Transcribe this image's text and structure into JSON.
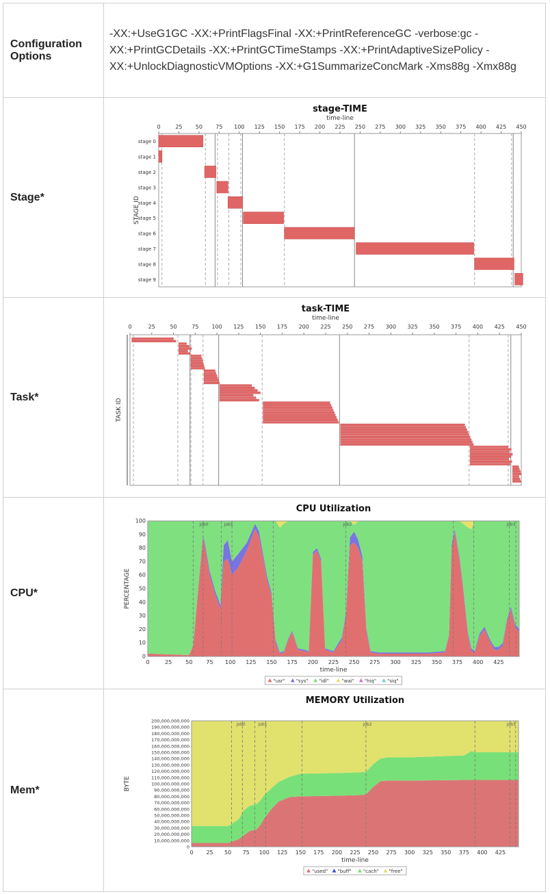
{
  "config": {
    "label": "Configuration Options",
    "label_line1": "Configuration",
    "label_line2": "Options",
    "text": "-XX:+UseG1GC -XX:+PrintFlagsFinal -XX:+PrintReferenceGC -verbose:gc -XX:+PrintGCDetails -XX:+PrintGCTimeStamps -XX:+PrintAdaptiveSizePolicy -XX:+UnlockDiagnosticVMOptions -XX:+G1SummarizeConcMark -Xms88g -Xmx88g"
  },
  "rows": {
    "stage": "Stage*",
    "task": "Task*",
    "cpu": "CPU*",
    "mem": "Mem*"
  },
  "colors": {
    "bar_red": "#e06666",
    "bar_red_dark": "#c84c4c",
    "used": "#db7575",
    "cache": "#78e078",
    "free": "#e1e16e",
    "idle": "#7fe07f",
    "sys": "#7a74e0",
    "wait": "#e8e06a",
    "usr": "#e07070",
    "hiq": "#d070d0",
    "siq": "#70d0d0",
    "buff": "#3c4cd8"
  },
  "chart_data": [
    {
      "type": "gantt",
      "title": "stage-TIME",
      "xlabel": "time-line",
      "ylabel": "STAGE ID",
      "xlim": [
        0,
        450
      ],
      "xticks": [
        0,
        25,
        50,
        75,
        100,
        125,
        150,
        175,
        200,
        225,
        250,
        275,
        300,
        325,
        350,
        375,
        400,
        425,
        450
      ],
      "dashed_lines": [
        4,
        58,
        73,
        87,
        102,
        156,
        392,
        438
      ],
      "solid_lines": [
        70,
        104,
        243,
        440
      ],
      "categories": [
        "stage 0",
        "stage 1",
        "stage 2",
        "stage 3",
        "stage 4",
        "stage 5",
        "stage 6",
        "stage 7",
        "stage 8",
        "stage 9"
      ],
      "intervals": [
        [
          0,
          55
        ],
        [
          0,
          4
        ],
        [
          57,
          71
        ],
        [
          72,
          86
        ],
        [
          86,
          104
        ],
        [
          105,
          155
        ],
        [
          156,
          243
        ],
        [
          245,
          391
        ],
        [
          392,
          441
        ],
        [
          442,
          452
        ]
      ]
    },
    {
      "type": "gantt",
      "title": "task-TIME",
      "xlabel": "time-line",
      "ylabel": "TASK ID",
      "xlim": [
        0,
        450
      ],
      "xticks": [
        0,
        25,
        50,
        75,
        100,
        125,
        150,
        175,
        200,
        225,
        250,
        275,
        300,
        325,
        350,
        375,
        400,
        425,
        450
      ],
      "dashed_lines": [
        4,
        55,
        70,
        84,
        152,
        390,
        435
      ],
      "solid_lines": [
        69,
        102,
        241,
        438
      ],
      "task_groups": [
        {
          "start": 2,
          "end_min": 50,
          "end_max": 53,
          "count": 2
        },
        {
          "start": 56,
          "end_min": 65,
          "end_max": 71,
          "count": 5
        },
        {
          "start": 70,
          "end_min": 82,
          "end_max": 86,
          "count": 6
        },
        {
          "start": 85,
          "end_min": 98,
          "end_max": 103,
          "count": 6
        },
        {
          "start": 103,
          "end_min": 140,
          "end_max": 150,
          "count": 7
        },
        {
          "start": 153,
          "end_min": 230,
          "end_max": 240,
          "count": 9
        },
        {
          "start": 242,
          "end_min": 385,
          "end_max": 395,
          "count": 9
        },
        {
          "start": 391,
          "end_min": 435,
          "end_max": 440,
          "count": 8
        },
        {
          "start": 440,
          "end_min": 447,
          "end_max": 450,
          "count": 7
        }
      ]
    },
    {
      "type": "area",
      "title": "CPU Utilization",
      "xlabel": "time-line",
      "ylabel": "PERCENTAGE",
      "xlim": [
        0,
        450
      ],
      "ylim": [
        0,
        100
      ],
      "xticks": [
        0,
        25,
        50,
        75,
        100,
        125,
        150,
        175,
        200,
        225,
        250,
        275,
        300,
        325,
        350,
        375,
        400,
        425
      ],
      "yticks": [
        0,
        10,
        20,
        30,
        40,
        50,
        60,
        70,
        80,
        90,
        100
      ],
      "job_lines": [
        55,
        67,
        89,
        102,
        152,
        240,
        370,
        395,
        438,
        446
      ],
      "job_labels": [
        {
          "x": 68,
          "text": "job0"
        },
        {
          "x": 98,
          "text": "job1"
        },
        {
          "x": 242,
          "text": "job2"
        },
        {
          "x": 440,
          "text": "job3"
        }
      ],
      "x": [
        0,
        5,
        50,
        55,
        62,
        67,
        70,
        75,
        82,
        88,
        92,
        97,
        102,
        110,
        120,
        130,
        135,
        140,
        145,
        150,
        155,
        160,
        165,
        170,
        175,
        182,
        190,
        195,
        200,
        205,
        210,
        215,
        225,
        235,
        240,
        245,
        250,
        255,
        260,
        265,
        270,
        280,
        300,
        320,
        340,
        360,
        365,
        368,
        372,
        378,
        382,
        388,
        392,
        396,
        402,
        408,
        415,
        420,
        425,
        430,
        435,
        440,
        445,
        450
      ],
      "series": [
        {
          "name": "\"usr\"",
          "values": [
            2,
            2,
            1,
            8,
            55,
            88,
            78,
            60,
            45,
            35,
            70,
            72,
            60,
            66,
            78,
            94,
            88,
            72,
            55,
            45,
            10,
            2,
            3,
            12,
            18,
            5,
            4,
            3,
            75,
            78,
            70,
            5,
            3,
            12,
            30,
            82,
            84,
            80,
            70,
            18,
            3,
            2,
            2,
            2,
            2,
            3,
            15,
            80,
            92,
            70,
            50,
            15,
            4,
            3,
            15,
            20,
            10,
            5,
            5,
            8,
            25,
            35,
            22,
            18
          ]
        },
        {
          "name": "\"sys\"",
          "values": [
            0,
            0,
            0,
            0,
            2,
            2,
            3,
            3,
            3,
            3,
            12,
            14,
            10,
            10,
            6,
            4,
            4,
            3,
            3,
            2,
            2,
            1,
            1,
            1,
            1,
            1,
            1,
            1,
            2,
            2,
            2,
            1,
            1,
            2,
            2,
            6,
            8,
            6,
            4,
            2,
            1,
            1,
            1,
            1,
            1,
            1,
            1,
            3,
            2,
            2,
            2,
            2,
            2,
            1,
            2,
            2,
            2,
            2,
            2,
            2,
            2,
            2,
            2,
            2
          ]
        },
        {
          "name": "\"idl\"",
          "values": [
            98,
            98,
            99,
            92,
            43,
            10,
            19,
            37,
            52,
            62,
            18,
            14,
            30,
            24,
            16,
            2,
            8,
            25,
            42,
            53,
            88,
            92,
            94,
            87,
            81,
            94,
            95,
            96,
            23,
            20,
            28,
            94,
            96,
            86,
            68,
            12,
            5,
            14,
            26,
            80,
            96,
            97,
            97,
            97,
            97,
            96,
            84,
            17,
            6,
            28,
            46,
            78,
            88,
            96,
            83,
            78,
            88,
            93,
            93,
            90,
            73,
            63,
            76,
            80
          ]
        },
        {
          "name": "\"wai\"",
          "values": [
            0,
            0,
            0,
            0,
            0,
            0,
            0,
            0,
            0,
            0,
            0,
            0,
            0,
            0,
            0,
            0,
            0,
            0,
            0,
            0,
            0,
            5,
            2,
            0,
            0,
            0,
            0,
            0,
            0,
            0,
            0,
            0,
            0,
            0,
            0,
            0,
            3,
            0,
            0,
            0,
            0,
            0,
            0,
            0,
            0,
            0,
            0,
            0,
            0,
            0,
            2,
            5,
            6,
            0,
            0,
            0,
            0,
            0,
            0,
            0,
            0,
            0,
            0,
            0
          ]
        },
        {
          "name": "\"hiq\"",
          "values": [
            0,
            0,
            0,
            0,
            0,
            0,
            0,
            0,
            0,
            0,
            0,
            0,
            0,
            0,
            0,
            0,
            0,
            0,
            0,
            0,
            0,
            0,
            0,
            0,
            0,
            0,
            0,
            0,
            0,
            0,
            0,
            0,
            0,
            0,
            0,
            0,
            0,
            0,
            0,
            0,
            0,
            0,
            0,
            0,
            0,
            0,
            0,
            0,
            0,
            0,
            0,
            0,
            0,
            0,
            0,
            0,
            0,
            0,
            0,
            0,
            0,
            0,
            0,
            0
          ]
        },
        {
          "name": "\"siq\"",
          "values": [
            0,
            0,
            0,
            0,
            0,
            0,
            0,
            0,
            0,
            0,
            0,
            0,
            0,
            0,
            0,
            0,
            0,
            0,
            0,
            0,
            0,
            0,
            0,
            0,
            0,
            0,
            0,
            0,
            0,
            0,
            0,
            0,
            0,
            0,
            0,
            0,
            0,
            0,
            0,
            0,
            0,
            0,
            0,
            0,
            0,
            0,
            0,
            0,
            0,
            0,
            0,
            0,
            0,
            0,
            0,
            0,
            0,
            0,
            0,
            0,
            0,
            0,
            0,
            0
          ]
        }
      ],
      "legend": [
        "\"usr\"",
        "\"sys\"",
        "\"idl\"",
        "\"wai\"",
        "\"hiq\"",
        "\"siq\""
      ]
    },
    {
      "type": "area",
      "title": "MEMORY Utilization",
      "xlabel": "time-line",
      "ylabel": "BYTE",
      "xlim": [
        0,
        450
      ],
      "ylim": [
        0,
        200000000000
      ],
      "xticks": [
        0,
        25,
        50,
        75,
        100,
        125,
        150,
        175,
        200,
        225,
        250,
        275,
        300,
        325,
        350,
        375,
        400,
        425
      ],
      "yticks": [
        0,
        10000000000,
        20000000000,
        30000000000,
        40000000000,
        50000000000,
        60000000000,
        70000000000,
        80000000000,
        90000000000,
        100000000000,
        110000000000,
        120000000000,
        130000000000,
        140000000000,
        150000000000,
        160000000000,
        170000000000,
        180000000000,
        190000000000,
        200000000000
      ],
      "ytick_labels": [
        "0",
        "10,000,000,000",
        "20,000,000,000",
        "30,000,000,000",
        "40,000,000,000",
        "50,000,000,000",
        "60,000,000,000",
        "70,000,000,000",
        "80,000,000,000",
        "90,000,000,000",
        "100,000,000,000",
        "110,000,000,000",
        "120,000,000,000",
        "130,000,000,000",
        "140,000,000,000",
        "150,000,000,000",
        "160,000,000,000",
        "170,000,000,000",
        "180,000,000,000",
        "190,000,000,000",
        "200,000,000,000"
      ],
      "job_lines": [
        55,
        70,
        87,
        102,
        152,
        240,
        390,
        438,
        446
      ],
      "job_labels": [
        {
          "x": 68,
          "text": "job0"
        },
        {
          "x": 98,
          "text": "job1"
        },
        {
          "x": 242,
          "text": "job2"
        },
        {
          "x": 440,
          "text": "job3"
        }
      ],
      "x": [
        0,
        20,
        50,
        55,
        65,
        72,
        80,
        90,
        95,
        100,
        110,
        120,
        135,
        150,
        200,
        230,
        240,
        250,
        260,
        270,
        300,
        375,
        385,
        390,
        420,
        450
      ],
      "series": [
        {
          "name": "\"used\"",
          "values": [
            6000000000,
            6000000000,
            6000000000,
            8000000000,
            12000000000,
            18000000000,
            25000000000,
            28000000000,
            35000000000,
            45000000000,
            60000000000,
            72000000000,
            79000000000,
            80000000000,
            81000000000,
            82000000000,
            83000000000,
            95000000000,
            104000000000,
            105000000000,
            105000000000,
            106000000000,
            106000000000,
            106000000000,
            106000000000,
            106000000000
          ]
        },
        {
          "name": "\"buff\"",
          "values": [
            0,
            0,
            0,
            0,
            0,
            0,
            0,
            0,
            0,
            0,
            0,
            0,
            0,
            0,
            0,
            0,
            0,
            0,
            0,
            0,
            0,
            0,
            0,
            0,
            0,
            0
          ]
        },
        {
          "name": "\"cach\"",
          "values": [
            27000000000,
            27000000000,
            27000000000,
            28000000000,
            32000000000,
            40000000000,
            40000000000,
            40000000000,
            39000000000,
            37000000000,
            33000000000,
            31000000000,
            32000000000,
            36000000000,
            36000000000,
            36000000000,
            36000000000,
            36000000000,
            36000000000,
            37000000000,
            37000000000,
            39000000000,
            46000000000,
            44000000000,
            44000000000,
            44000000000
          ]
        },
        {
          "name": "\"free\"",
          "values": [
            167000000000,
            167000000000,
            167000000000,
            164000000000,
            156000000000,
            142000000000,
            135000000000,
            132000000000,
            126000000000,
            118000000000,
            107000000000,
            97000000000,
            89000000000,
            84000000000,
            83000000000,
            82000000000,
            81000000000,
            69000000000,
            60000000000,
            58000000000,
            58000000000,
            55000000000,
            48000000000,
            50000000000,
            50000000000,
            50000000000
          ]
        }
      ],
      "legend": [
        "\"used\"",
        "\"buff\"",
        "\"cach\"",
        "\"free\""
      ]
    }
  ]
}
